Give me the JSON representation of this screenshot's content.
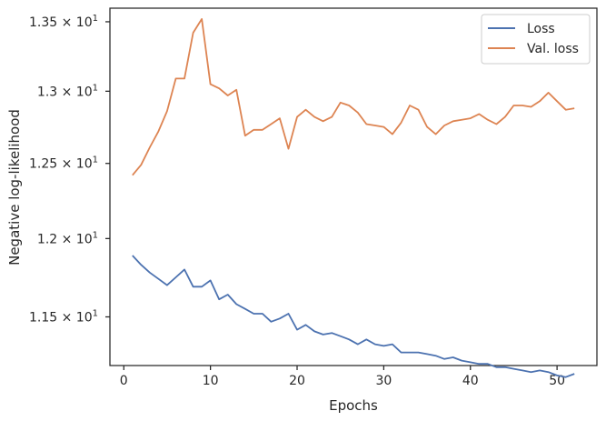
{
  "chart_data": {
    "type": "line",
    "xlabel": "Epochs",
    "ylabel": "Negative log-likelihood",
    "x_ticks": [
      0,
      10,
      20,
      30,
      40,
      50
    ],
    "y_ticks": [
      {
        "value": 11.5,
        "mantissa": "1.15",
        "exp": "1"
      },
      {
        "value": 12.0,
        "mantissa": "1.2",
        "exp": "1"
      },
      {
        "value": 12.5,
        "mantissa": "1.25",
        "exp": "1"
      },
      {
        "value": 13.0,
        "mantissa": "1.3",
        "exp": "1"
      },
      {
        "value": 13.5,
        "mantissa": "1.35",
        "exp": "1"
      }
    ],
    "y_scale": "log",
    "xlim": [
      -1.6,
      54.6
    ],
    "ylim": [
      11.2,
      13.6
    ],
    "grid": false,
    "legend_position": "top-right",
    "x": [
      1,
      2,
      3,
      4,
      5,
      6,
      7,
      8,
      9,
      10,
      11,
      12,
      13,
      14,
      15,
      16,
      17,
      18,
      19,
      20,
      21,
      22,
      23,
      24,
      25,
      26,
      27,
      28,
      29,
      30,
      31,
      32,
      33,
      34,
      35,
      36,
      37,
      38,
      39,
      40,
      41,
      42,
      43,
      44,
      45,
      46,
      47,
      48,
      49,
      50,
      51,
      52
    ],
    "series": [
      {
        "name": "Loss",
        "color": "#4c72b0",
        "values": [
          11.89,
          11.83,
          11.78,
          11.74,
          11.7,
          11.75,
          11.8,
          11.69,
          11.69,
          11.73,
          11.61,
          11.64,
          11.58,
          11.55,
          11.52,
          11.52,
          11.47,
          11.49,
          11.52,
          11.42,
          11.45,
          11.41,
          11.39,
          11.4,
          11.38,
          11.36,
          11.33,
          11.36,
          11.33,
          11.32,
          11.33,
          11.28,
          11.28,
          11.28,
          11.27,
          11.26,
          11.24,
          11.25,
          11.23,
          11.22,
          11.21,
          11.21,
          11.19,
          11.19,
          11.18,
          11.17,
          11.16,
          11.17,
          11.16,
          11.14,
          11.13,
          11.15
        ]
      },
      {
        "name": "Val. loss",
        "color": "#dd8452",
        "values": [
          12.42,
          12.49,
          12.61,
          12.72,
          12.86,
          13.09,
          13.09,
          13.42,
          13.52,
          13.05,
          13.02,
          12.97,
          13.01,
          12.69,
          12.73,
          12.73,
          12.77,
          12.81,
          12.6,
          12.82,
          12.87,
          12.82,
          12.79,
          12.82,
          12.92,
          12.9,
          12.85,
          12.77,
          12.76,
          12.75,
          12.7,
          12.78,
          12.9,
          12.87,
          12.75,
          12.7,
          12.76,
          12.79,
          12.8,
          12.81,
          12.84,
          12.8,
          12.77,
          12.82,
          12.9,
          12.9,
          12.89,
          12.93,
          12.99,
          12.93,
          12.87,
          12.88
        ]
      }
    ]
  }
}
